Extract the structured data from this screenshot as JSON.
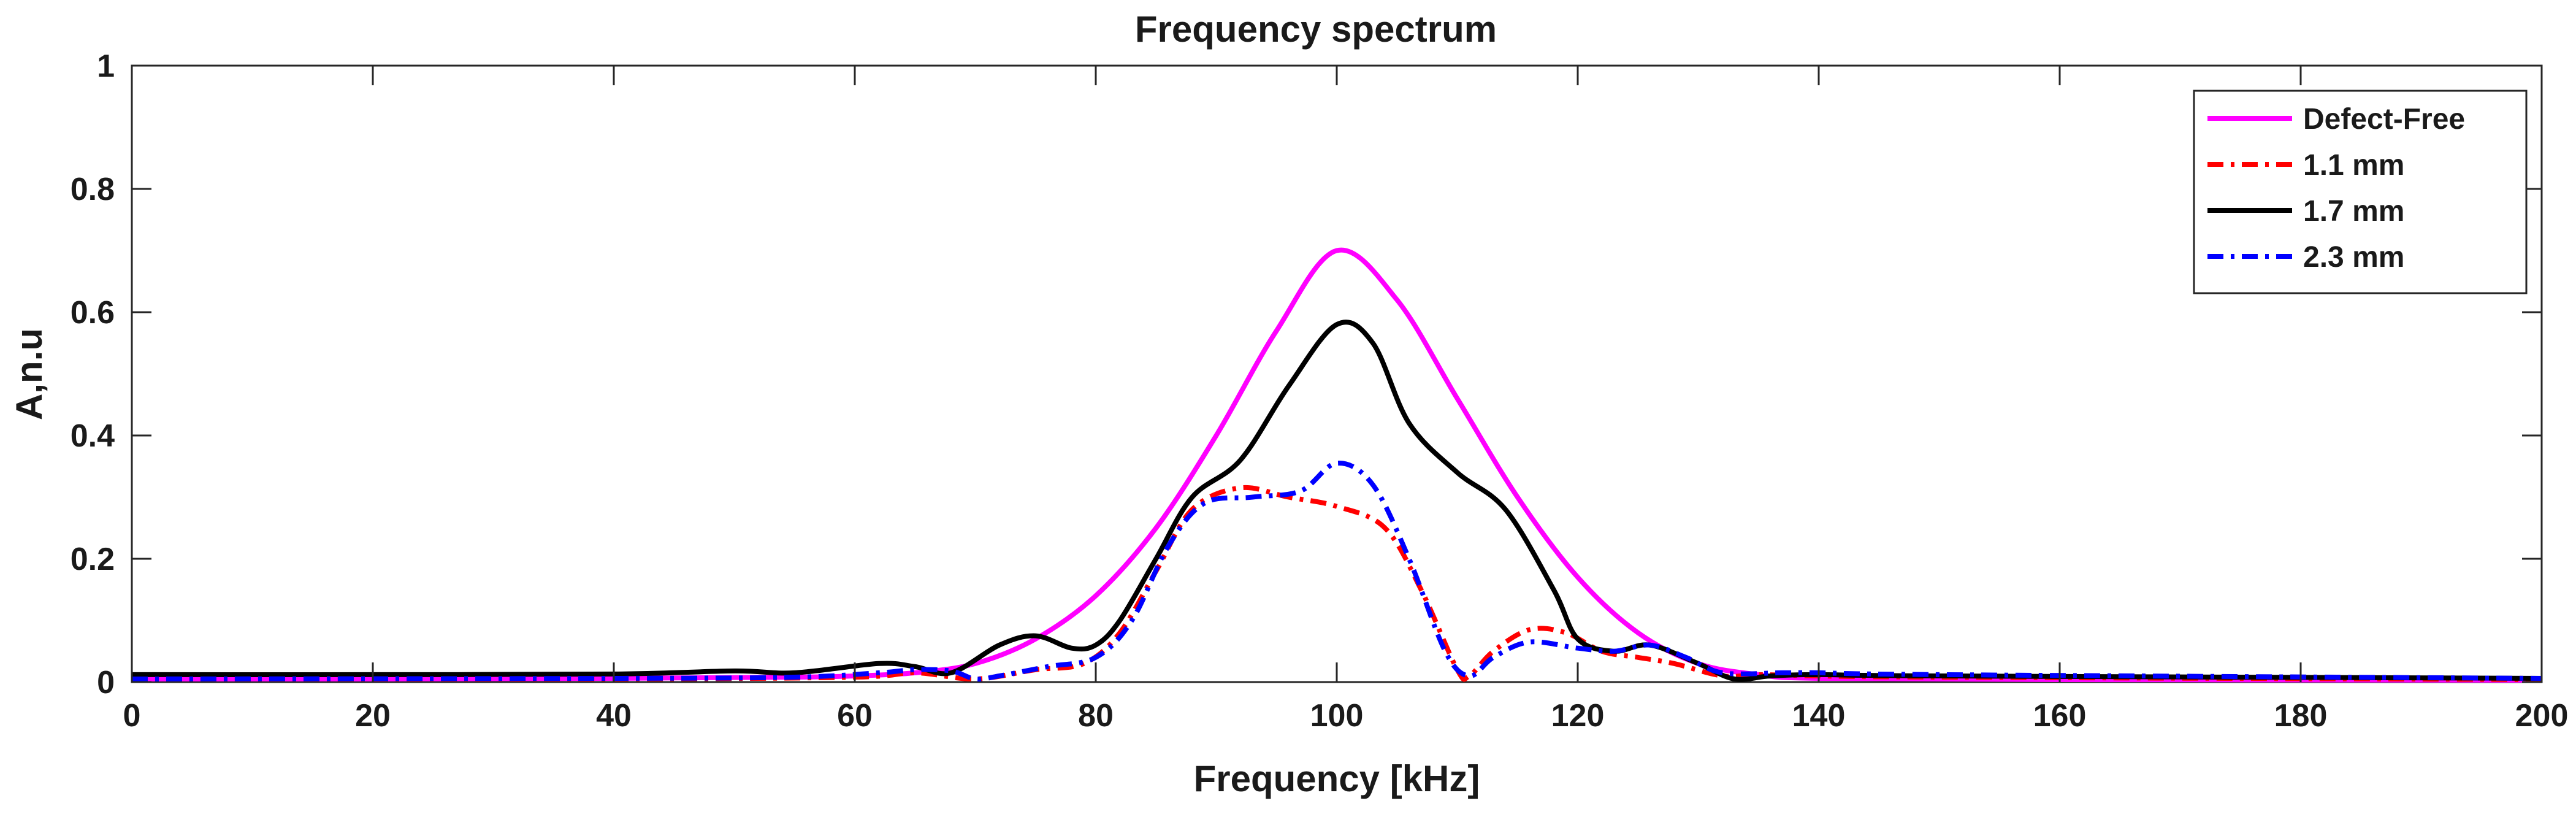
{
  "chart_data": {
    "type": "line",
    "title": "Frequency spectrum",
    "xlabel": "Frequency [kHz]",
    "ylabel": "A,n.u",
    "xlim": [
      0,
      200
    ],
    "ylim": [
      0,
      1
    ],
    "xticks": [
      0,
      20,
      40,
      60,
      80,
      100,
      120,
      140,
      160,
      180,
      200
    ],
    "yticks": [
      0,
      0.2,
      0.4,
      0.6,
      0.8,
      1
    ],
    "x_tick_labels": [
      "0",
      "20",
      "40",
      "60",
      "80",
      "100",
      "120",
      "140",
      "160",
      "180",
      "200"
    ],
    "y_tick_labels": [
      "0",
      "0.2",
      "0.4",
      "0.6",
      "0.8",
      "1"
    ],
    "grid": false,
    "legend_position": "top-right",
    "series": [
      {
        "name": "Defect-Free",
        "color": "#ff00ff",
        "style": "solid",
        "points": [
          [
            0,
            0.005
          ],
          [
            20,
            0.005
          ],
          [
            40,
            0.006
          ],
          [
            55,
            0.008
          ],
          [
            60,
            0.01
          ],
          [
            65,
            0.015
          ],
          [
            70,
            0.03
          ],
          [
            75,
            0.07
          ],
          [
            80,
            0.14
          ],
          [
            85,
            0.25
          ],
          [
            90,
            0.4
          ],
          [
            95,
            0.57
          ],
          [
            100,
            0.7
          ],
          [
            105,
            0.62
          ],
          [
            110,
            0.46
          ],
          [
            115,
            0.3
          ],
          [
            120,
            0.17
          ],
          [
            125,
            0.08
          ],
          [
            130,
            0.03
          ],
          [
            135,
            0.012
          ],
          [
            140,
            0.006
          ],
          [
            160,
            0.004
          ],
          [
            200,
            0.003
          ]
        ]
      },
      {
        "name": "1.1 mm",
        "color": "#ff0000",
        "style": "dashdot",
        "points": [
          [
            0,
            0.005
          ],
          [
            40,
            0.005
          ],
          [
            60,
            0.008
          ],
          [
            65,
            0.015
          ],
          [
            70,
            0.005
          ],
          [
            75,
            0.02
          ],
          [
            79,
            0.03
          ],
          [
            82,
            0.08
          ],
          [
            85,
            0.18
          ],
          [
            88,
            0.28
          ],
          [
            92,
            0.315
          ],
          [
            96,
            0.3
          ],
          [
            100,
            0.285
          ],
          [
            104,
            0.25
          ],
          [
            107,
            0.15
          ],
          [
            110,
            0.02
          ],
          [
            111,
            0.01
          ],
          [
            113,
            0.05
          ],
          [
            116,
            0.085
          ],
          [
            119,
            0.08
          ],
          [
            122,
            0.05
          ],
          [
            125,
            0.04
          ],
          [
            128,
            0.03
          ],
          [
            132,
            0.01
          ],
          [
            135,
            0.012
          ],
          [
            140,
            0.01
          ],
          [
            150,
            0.008
          ],
          [
            200,
            0.004
          ]
        ]
      },
      {
        "name": "1.7 mm",
        "color": "#000000",
        "style": "solid",
        "points": [
          [
            0,
            0.012
          ],
          [
            20,
            0.012
          ],
          [
            40,
            0.013
          ],
          [
            50,
            0.018
          ],
          [
            55,
            0.015
          ],
          [
            62,
            0.03
          ],
          [
            65,
            0.025
          ],
          [
            68,
            0.015
          ],
          [
            72,
            0.06
          ],
          [
            75,
            0.075
          ],
          [
            78,
            0.055
          ],
          [
            80,
            0.06
          ],
          [
            82,
            0.1
          ],
          [
            85,
            0.2
          ],
          [
            88,
            0.3
          ],
          [
            92,
            0.36
          ],
          [
            96,
            0.48
          ],
          [
            100,
            0.58
          ],
          [
            103,
            0.55
          ],
          [
            106,
            0.42
          ],
          [
            110,
            0.34
          ],
          [
            114,
            0.28
          ],
          [
            118,
            0.15
          ],
          [
            120,
            0.07
          ],
          [
            123,
            0.05
          ],
          [
            126,
            0.06
          ],
          [
            130,
            0.03
          ],
          [
            133,
            0.005
          ],
          [
            136,
            0.01
          ],
          [
            140,
            0.012
          ],
          [
            150,
            0.01
          ],
          [
            200,
            0.006
          ]
        ]
      },
      {
        "name": "2.3 mm",
        "color": "#0000ff",
        "style": "dashdot",
        "points": [
          [
            0,
            0.005
          ],
          [
            40,
            0.006
          ],
          [
            55,
            0.008
          ],
          [
            62,
            0.015
          ],
          [
            65,
            0.02
          ],
          [
            68,
            0.018
          ],
          [
            70,
            0.005
          ],
          [
            72,
            0.01
          ],
          [
            76,
            0.025
          ],
          [
            80,
            0.04
          ],
          [
            83,
            0.1
          ],
          [
            86,
            0.22
          ],
          [
            89,
            0.29
          ],
          [
            93,
            0.3
          ],
          [
            97,
            0.31
          ],
          [
            100,
            0.355
          ],
          [
            103,
            0.32
          ],
          [
            106,
            0.2
          ],
          [
            109,
            0.05
          ],
          [
            111,
            0.01
          ],
          [
            113,
            0.04
          ],
          [
            116,
            0.065
          ],
          [
            120,
            0.055
          ],
          [
            123,
            0.05
          ],
          [
            126,
            0.06
          ],
          [
            129,
            0.04
          ],
          [
            132,
            0.015
          ],
          [
            137,
            0.015
          ],
          [
            140,
            0.015
          ],
          [
            150,
            0.012
          ],
          [
            200,
            0.006
          ]
        ]
      }
    ]
  }
}
